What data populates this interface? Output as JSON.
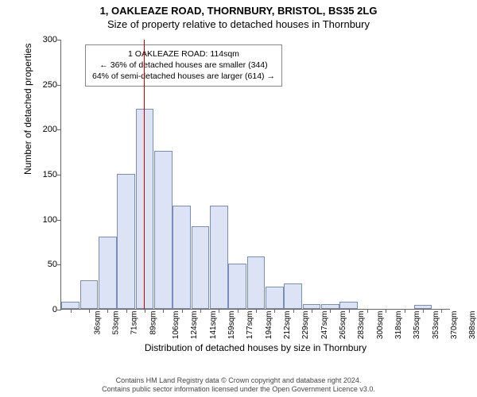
{
  "title": {
    "line1": "1, OAKLEAZE ROAD, THORNBURY, BRISTOL, BS35 2LG",
    "line2": "Size of property relative to detached houses in Thornbury"
  },
  "chart": {
    "type": "histogram",
    "ylabel": "Number of detached properties",
    "xlabel": "Distribution of detached houses by size in Thornbury",
    "ylim": [
      0,
      300
    ],
    "ytick_step": 50,
    "background_color": "#ffffff",
    "bar_fill": "#dbe3f4",
    "bar_stroke": "#7a8db8",
    "xunit": "sqm",
    "xticks": [
      36,
      53,
      71,
      89,
      106,
      124,
      141,
      159,
      177,
      194,
      212,
      229,
      247,
      265,
      283,
      300,
      318,
      335,
      353,
      370,
      388
    ],
    "values": [
      8,
      32,
      80,
      150,
      222,
      176,
      115,
      92,
      115,
      50,
      58,
      25,
      28,
      5,
      5,
      8,
      0,
      0,
      0,
      4,
      0
    ],
    "marker": {
      "x_value": 114,
      "color": "#d40000"
    },
    "annotation": {
      "line1": "1 OAKLEAZE ROAD: 114sqm",
      "line2": "← 36% of detached houses are smaller (344)",
      "line3": "64% of semi-detached houses are larger (614) →"
    }
  },
  "footer": {
    "line1": "Contains HM Land Registry data © Crown copyright and database right 2024.",
    "line2": "Contains public sector information licensed under the Open Government Licence v3.0."
  }
}
